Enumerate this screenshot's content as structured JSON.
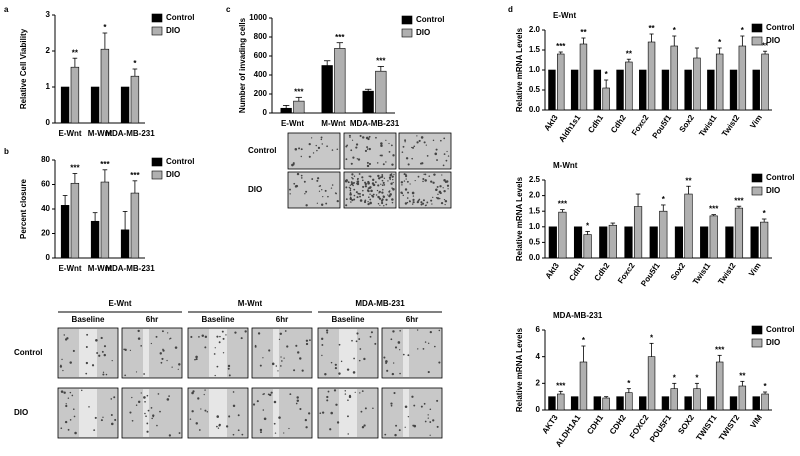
{
  "panel_labels": [
    "a",
    "b",
    "c",
    "d"
  ],
  "chart_data": [
    {
      "type": "bar",
      "y_label": "Relative Cell Viability",
      "categories": [
        "E-Wnt",
        "M-Wnt",
        "MDA-MB-231"
      ],
      "series": [
        {
          "name": "Control",
          "color": "#000000",
          "values": [
            1,
            1,
            1
          ]
        },
        {
          "name": "DIO",
          "color": "#b0b0b0",
          "values": [
            1.55,
            2.05,
            1.3
          ],
          "errors": [
            0.25,
            0.45,
            0.2
          ]
        }
      ],
      "annotations": [
        "**",
        "*",
        "*"
      ],
      "ylim": [
        0,
        3
      ],
      "yticks": [
        0,
        1,
        2,
        3
      ]
    },
    {
      "type": "bar",
      "y_label": "Percent closure",
      "categories": [
        "E-Wnt",
        "M-Wnt",
        "MDA-MB-231"
      ],
      "series": [
        {
          "name": "Control",
          "color": "#000000",
          "values": [
            43,
            30,
            23
          ],
          "errors": [
            8,
            7,
            15
          ]
        },
        {
          "name": "DIO",
          "color": "#b0b0b0",
          "values": [
            61,
            62,
            53
          ],
          "errors": [
            8,
            10,
            10
          ]
        }
      ],
      "annotations": [
        "***",
        "***",
        "***"
      ],
      "ylim": [
        0,
        80
      ],
      "yticks": [
        0,
        20,
        40,
        60,
        80
      ]
    },
    {
      "type": "bar",
      "y_label": "Number of invading cells",
      "categories": [
        "E-Wnt",
        "M-Wnt",
        "MDA-MB-231"
      ],
      "series": [
        {
          "name": "Control",
          "color": "#000000",
          "values": [
            50,
            500,
            230
          ],
          "errors": [
            30,
            50,
            20
          ]
        },
        {
          "name": "DIO",
          "color": "#b0b0b0",
          "values": [
            125,
            680,
            440
          ],
          "errors": [
            40,
            60,
            50
          ]
        }
      ],
      "annotations": [
        "***",
        "***",
        "***"
      ],
      "ylim": [
        0,
        1000
      ],
      "yticks": [
        0,
        200,
        400,
        600,
        800,
        1000
      ]
    },
    {
      "type": "bar",
      "title": "E-Wnt",
      "y_label": "Relative mRNA Levels",
      "categories": [
        "Akt3",
        "Aldh1s1",
        "Cdh1",
        "Cdh2",
        "Foxc2",
        "Pou5f1",
        "Sox2",
        "Twist1",
        "Twist2",
        "Vim"
      ],
      "series": [
        {
          "name": "Control",
          "color": "#000000",
          "values": [
            1,
            1,
            1,
            1,
            1,
            1,
            1,
            1,
            1,
            1
          ]
        },
        {
          "name": "DIO",
          "color": "#b0b0b0",
          "values": [
            1.4,
            1.65,
            0.55,
            1.2,
            1.7,
            1.6,
            1.3,
            1.4,
            1.6,
            1.4
          ],
          "errors": [
            0.05,
            0.15,
            0.2,
            0.07,
            0.2,
            0.25,
            0.25,
            0.15,
            0.25,
            0.07
          ]
        }
      ],
      "annotations": [
        "***",
        "**",
        "*",
        "**",
        "**",
        "*",
        null,
        "*",
        "*",
        "**"
      ],
      "ylim": [
        0,
        2
      ],
      "yticks": [
        {
          "value": 0,
          "label": "0.0"
        },
        0.5,
        {
          "value": 1,
          "label": "1.0"
        },
        1.5,
        {
          "value": 2,
          "label": "2.0"
        }
      ]
    },
    {
      "type": "bar",
      "title": "M-Wnt",
      "y_label": "Relative mRNA Levels",
      "categories": [
        "Akt3",
        "Cdh1",
        "Cdh2",
        "Foxc2",
        "Pou5f1",
        "Sox2",
        "Twist1",
        "Twist2",
        "Vim"
      ],
      "series": [
        {
          "name": "Control",
          "color": "#000000",
          "values": [
            1,
            1,
            1,
            1,
            1,
            1,
            1,
            1,
            1
          ]
        },
        {
          "name": "DIO",
          "color": "#b0b0b0",
          "values": [
            1.47,
            0.75,
            1.05,
            1.65,
            1.5,
            2.05,
            1.35,
            1.6,
            1.15
          ],
          "errors": [
            0.08,
            0.1,
            0.07,
            0.4,
            0.2,
            0.25,
            0.04,
            0.06,
            0.1
          ]
        }
      ],
      "annotations": [
        "***",
        "*",
        null,
        null,
        "*",
        "**",
        "***",
        "***",
        "*"
      ],
      "ylim": [
        0,
        2.5
      ],
      "yticks": [
        {
          "value": 0,
          "label": "0.0"
        },
        0.5,
        {
          "value": 1,
          "label": "1.0"
        },
        1.5,
        {
          "value": 2,
          "label": "2.0"
        },
        2.5
      ]
    },
    {
      "type": "bar",
      "title": "MDA-MB-231",
      "y_label": "Relative mRNA Levels",
      "categories": [
        "AKT3",
        "ALDH1A1",
        "CDH1",
        "CDH2",
        "FOXC2",
        "POU5F1",
        "SOX2",
        "TWIST1",
        "TWIST2",
        "VIM"
      ],
      "series": [
        {
          "name": "Control",
          "color": "#000000",
          "values": [
            1,
            1,
            1,
            1,
            1,
            1,
            1,
            1,
            1,
            1
          ]
        },
        {
          "name": "DIO",
          "color": "#b0b0b0",
          "values": [
            1.2,
            3.6,
            0.9,
            1.3,
            4.0,
            1.6,
            1.6,
            3.6,
            1.8,
            1.2
          ],
          "errors": [
            0.2,
            1.2,
            0.1,
            0.3,
            1.0,
            0.4,
            0.4,
            0.5,
            0.35,
            0.15
          ]
        }
      ],
      "annotations": [
        "***",
        "*",
        null,
        "*",
        "*",
        "*",
        "*",
        "***",
        "**",
        "*"
      ],
      "ylim": [
        0,
        6
      ],
      "yticks": [
        0,
        2,
        4,
        6
      ]
    }
  ],
  "invasion_images": {
    "rows": [
      "Control",
      "DIO"
    ]
  },
  "wound_images": {
    "groups": [
      "E-Wnt",
      "M-Wnt",
      "MDA-MB-231"
    ],
    "columns": [
      "Baseline",
      "6hr"
    ],
    "rows": [
      "Control",
      "DIO"
    ]
  }
}
